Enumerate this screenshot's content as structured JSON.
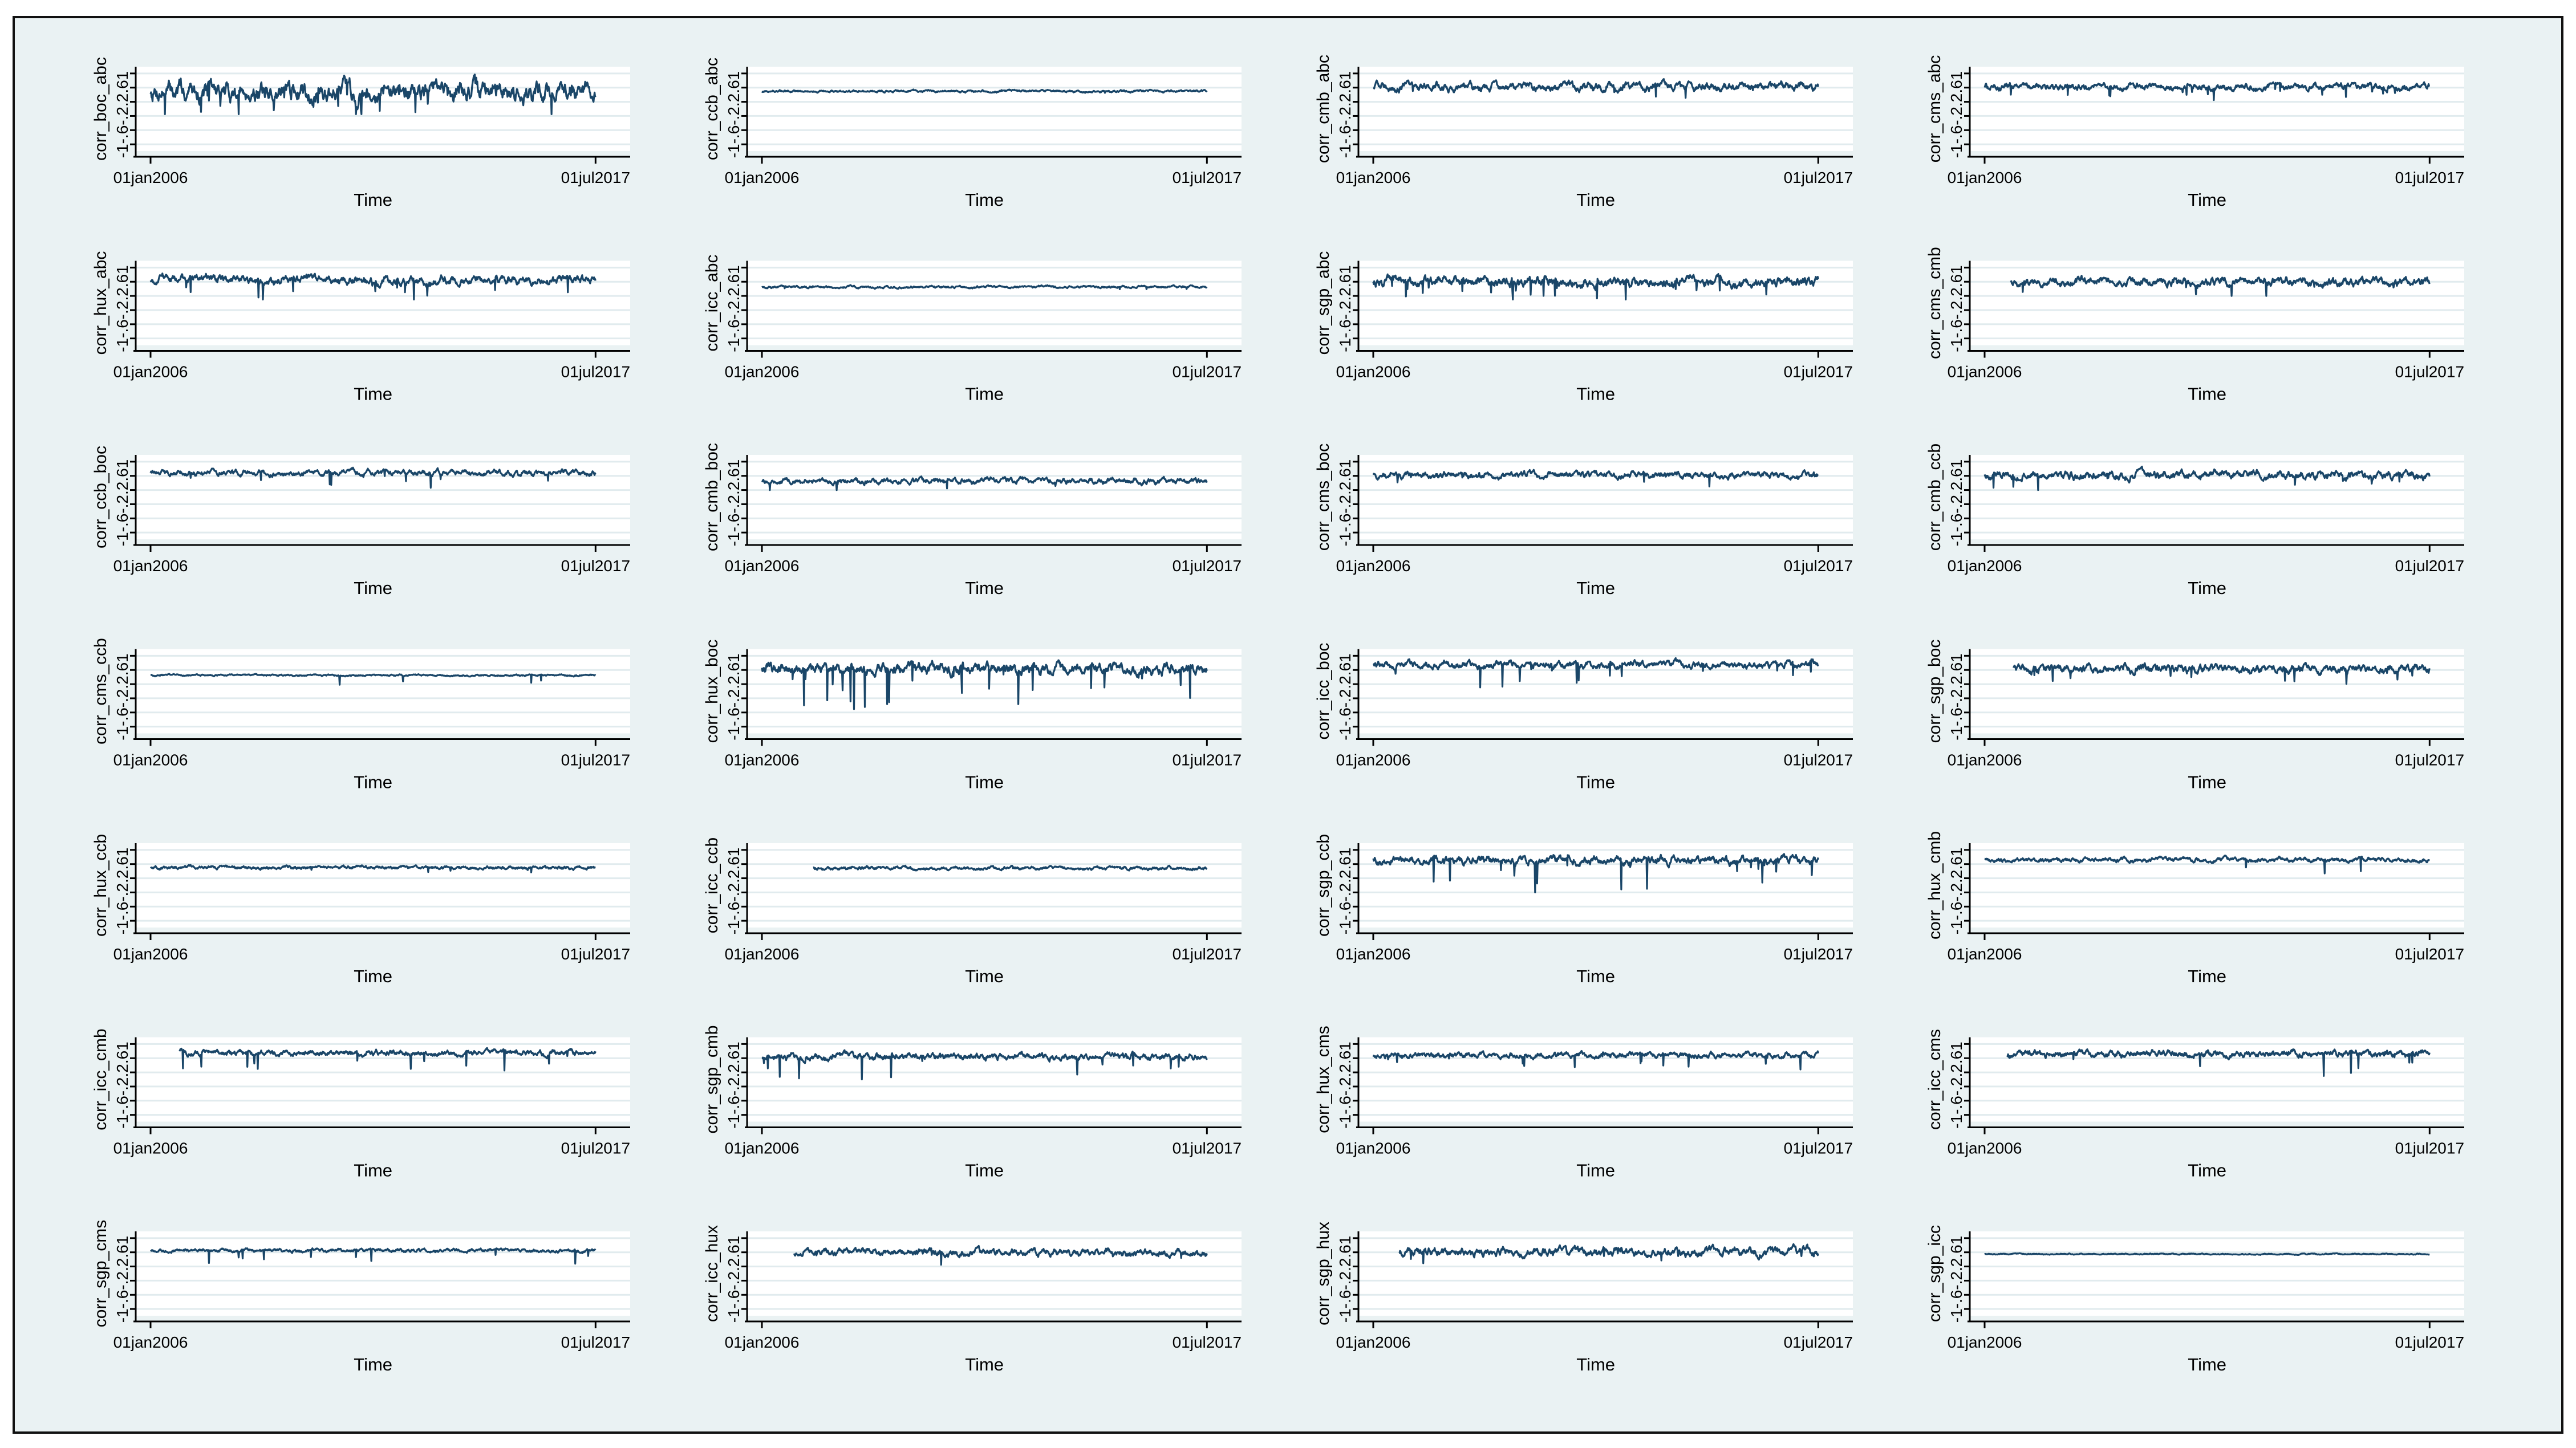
{
  "figure": {
    "background": "#eaf2f3",
    "plot_background": "#ffffff",
    "line_color": "#1a4668",
    "grid_color": "#e1ebee"
  },
  "chart_data": [
    {
      "type": "line",
      "ylabel": "corr_boc_abc",
      "xlabel": "Time",
      "y_ticks": [
        "-1",
        "-.6",
        "-.2",
        ".2",
        ".6",
        "1"
      ],
      "ylim": [
        -1,
        1
      ],
      "x_ticks": [
        "01jan2006",
        "01jul2017"
      ],
      "series": [
        {
          "x_start": "2006-01-01",
          "x_end": "2017-07-01",
          "level": 0.5,
          "volatility": 0.35,
          "spikiness": 0.8,
          "min": -0.15,
          "max": 0.98
        }
      ]
    },
    {
      "type": "line",
      "ylabel": "corr_ccb_abc",
      "xlabel": "Time",
      "y_ticks": [
        "-1",
        "-.6",
        "-.2",
        ".2",
        ".6",
        "1"
      ],
      "ylim": [
        -1,
        1
      ],
      "x_ticks": [
        "01jan2006",
        "01jul2017"
      ],
      "series": [
        {
          "x_start": "2006-01-01",
          "x_end": "2017-07-01",
          "level": 0.5,
          "volatility": 0.04,
          "spikiness": 0.05,
          "min": 0.36,
          "max": 0.62
        }
      ]
    },
    {
      "type": "line",
      "ylabel": "corr_cmb_abc",
      "xlabel": "Time",
      "y_ticks": [
        "-1",
        "-.6",
        "-.2",
        ".2",
        ".6",
        "1"
      ],
      "ylim": [
        -1,
        1
      ],
      "x_ticks": [
        "01jan2006",
        "01jul2017"
      ],
      "series": [
        {
          "x_start": "2006-01-01",
          "x_end": "2017-07-01",
          "level": 0.62,
          "volatility": 0.15,
          "spikiness": 0.35,
          "min": 0.25,
          "max": 0.95
        }
      ]
    },
    {
      "type": "line",
      "ylabel": "corr_cms_abc",
      "xlabel": "Time",
      "y_ticks": [
        "-1",
        "-.6",
        "-.2",
        ".2",
        ".6",
        "1"
      ],
      "ylim": [
        -1,
        1
      ],
      "x_ticks": [
        "01jan2006",
        "01jul2017"
      ],
      "series": [
        {
          "x_start": "2006-01-01",
          "x_end": "2017-07-01",
          "level": 0.62,
          "volatility": 0.12,
          "spikiness": 0.3,
          "min": 0.25,
          "max": 0.95
        }
      ]
    },
    {
      "type": "line",
      "ylabel": "corr_hux_abc",
      "xlabel": "Time",
      "y_ticks": [
        "-1",
        "-.6",
        "-.2",
        ".2",
        ".6",
        "1"
      ],
      "ylim": [
        -1,
        1
      ],
      "x_ticks": [
        "01jan2006",
        "01jul2017"
      ],
      "series": [
        {
          "x_start": "2006-01-01",
          "x_end": "2017-07-01",
          "level": 0.65,
          "volatility": 0.15,
          "spikiness": 0.45,
          "min": 0.1,
          "max": 0.95
        }
      ]
    },
    {
      "type": "line",
      "ylabel": "corr_icc_abc",
      "xlabel": "Time",
      "y_ticks": [
        "-1",
        "-.6",
        "-.2",
        ".2",
        ".6",
        "1"
      ],
      "ylim": [
        -1,
        1
      ],
      "x_ticks": [
        "01jan2006",
        "01jul2017"
      ],
      "series": [
        {
          "x_start": "2006-01-01",
          "x_end": "2017-07-01",
          "level": 0.45,
          "volatility": 0.04,
          "spikiness": 0.1,
          "min": 0.35,
          "max": 0.55
        }
      ]
    },
    {
      "type": "line",
      "ylabel": "corr_sgp_abc",
      "xlabel": "Time",
      "y_ticks": [
        "-1",
        "-.6",
        "-.2",
        ".2",
        ".6",
        "1"
      ],
      "ylim": [
        -1,
        1
      ],
      "x_ticks": [
        "01jan2006",
        "01jul2017"
      ],
      "series": [
        {
          "x_start": "2006-01-01",
          "x_end": "2017-07-01",
          "level": 0.6,
          "volatility": 0.18,
          "spikiness": 0.5,
          "min": 0.1,
          "max": 0.98
        }
      ]
    },
    {
      "type": "line",
      "ylabel": "corr_cms_cmb",
      "xlabel": "Time",
      "y_ticks": [
        "-1",
        "-.6",
        "-.2",
        ".2",
        ".6",
        "1"
      ],
      "ylim": [
        -1,
        1
      ],
      "x_ticks": [
        "01jan2006",
        "01jul2017"
      ],
      "series": [
        {
          "x_start": "2006-09-01",
          "x_end": "2017-07-01",
          "level": 0.6,
          "volatility": 0.15,
          "spikiness": 0.4,
          "min": 0.2,
          "max": 0.95
        }
      ]
    },
    {
      "type": "line",
      "ylabel": "corr_ccb_boc",
      "xlabel": "Time",
      "y_ticks": [
        "-1",
        "-.6",
        "-.2",
        ".2",
        ".6",
        "1"
      ],
      "ylim": [
        -1,
        1
      ],
      "x_ticks": [
        "01jan2006",
        "01jul2017"
      ],
      "series": [
        {
          "x_start": "2006-01-01",
          "x_end": "2017-07-01",
          "level": 0.68,
          "volatility": 0.1,
          "spikiness": 0.35,
          "min": 0.25,
          "max": 0.95
        }
      ]
    },
    {
      "type": "line",
      "ylabel": "corr_cmb_boc",
      "xlabel": "Time",
      "y_ticks": [
        "-1",
        "-.6",
        "-.2",
        ".2",
        ".6",
        "1"
      ],
      "ylim": [
        -1,
        1
      ],
      "x_ticks": [
        "01jan2006",
        "01jul2017"
      ],
      "series": [
        {
          "x_start": "2006-01-01",
          "x_end": "2017-07-01",
          "level": 0.45,
          "volatility": 0.1,
          "spikiness": 0.25,
          "min": 0.2,
          "max": 0.8
        }
      ]
    },
    {
      "type": "line",
      "ylabel": "corr_cms_boc",
      "xlabel": "Time",
      "y_ticks": [
        "-1",
        "-.6",
        "-.2",
        ".2",
        ".6",
        "1"
      ],
      "ylim": [
        -1,
        1
      ],
      "x_ticks": [
        "01jan2006",
        "01jul2017"
      ],
      "series": [
        {
          "x_start": "2006-01-01",
          "x_end": "2017-07-01",
          "level": 0.62,
          "volatility": 0.12,
          "spikiness": 0.3,
          "min": 0.25,
          "max": 0.95
        }
      ]
    },
    {
      "type": "line",
      "ylabel": "corr_cmb_ccb",
      "xlabel": "Time",
      "y_ticks": [
        "-1",
        "-.6",
        "-.2",
        ".2",
        ".6",
        "1"
      ],
      "ylim": [
        -1,
        1
      ],
      "x_ticks": [
        "01jan2006",
        "01jul2017"
      ],
      "series": [
        {
          "x_start": "2006-01-01",
          "x_end": "2017-07-01",
          "level": 0.62,
          "volatility": 0.14,
          "spikiness": 0.35,
          "min": 0.2,
          "max": 0.95
        }
      ]
    },
    {
      "type": "line",
      "ylabel": "corr_cms_ccb",
      "xlabel": "Time",
      "y_ticks": [
        "-1",
        "-.6",
        "-.2",
        ".2",
        ".6",
        "1"
      ],
      "ylim": [
        -1,
        1
      ],
      "x_ticks": [
        "01jan2006",
        "01jul2017"
      ],
      "series": [
        {
          "x_start": "2006-01-01",
          "x_end": "2017-07-01",
          "level": 0.45,
          "volatility": 0.03,
          "spikiness": 0.05,
          "min": 0.15,
          "max": 0.58
        }
      ]
    },
    {
      "type": "line",
      "ylabel": "corr_hux_boc",
      "xlabel": "Time",
      "y_ticks": [
        "-1",
        "-.6",
        "-.2",
        ".2",
        ".6",
        "1"
      ],
      "ylim": [
        -1,
        1
      ],
      "x_ticks": [
        "01jan2006",
        "01jul2017"
      ],
      "series": [
        {
          "x_start": "2006-01-01",
          "x_end": "2017-07-01",
          "level": 0.62,
          "volatility": 0.2,
          "spikiness": 0.7,
          "min": -0.55,
          "max": 0.98
        }
      ]
    },
    {
      "type": "line",
      "ylabel": "corr_icc_boc",
      "xlabel": "Time",
      "y_ticks": [
        "-1",
        "-.6",
        "-.2",
        ".2",
        ".6",
        "1"
      ],
      "ylim": [
        -1,
        1
      ],
      "x_ticks": [
        "01jan2006",
        "01jul2017"
      ],
      "series": [
        {
          "x_start": "2006-01-01",
          "x_end": "2017-07-01",
          "level": 0.75,
          "volatility": 0.12,
          "spikiness": 0.55,
          "min": 0.1,
          "max": 0.98
        }
      ]
    },
    {
      "type": "line",
      "ylabel": "corr_sgp_boc",
      "xlabel": "Time",
      "y_ticks": [
        "-1",
        "-.6",
        "-.2",
        ".2",
        ".6",
        "1"
      ],
      "ylim": [
        -1,
        1
      ],
      "x_ticks": [
        "01jan2006",
        "01jul2017"
      ],
      "series": [
        {
          "x_start": "2006-10-01",
          "x_end": "2017-07-01",
          "level": 0.62,
          "volatility": 0.15,
          "spikiness": 0.5,
          "min": 0.2,
          "max": 0.95
        }
      ]
    },
    {
      "type": "line",
      "ylabel": "corr_hux_ccb",
      "xlabel": "Time",
      "y_ticks": [
        "-1",
        "-.6",
        "-.2",
        ".2",
        ".6",
        "1"
      ],
      "ylim": [
        -1,
        1
      ],
      "x_ticks": [
        "01jan2006",
        "01jul2017"
      ],
      "series": [
        {
          "x_start": "2006-01-01",
          "x_end": "2017-07-01",
          "level": 0.5,
          "volatility": 0.06,
          "spikiness": 0.2,
          "min": 0.3,
          "max": 0.75
        }
      ]
    },
    {
      "type": "line",
      "ylabel": "corr_icc_ccb",
      "xlabel": "Time",
      "y_ticks": [
        "-1",
        "-.6",
        "-.2",
        ".2",
        ".6",
        "1"
      ],
      "ylim": [
        -1,
        1
      ],
      "x_ticks": [
        "01jan2006",
        "01jul2017"
      ],
      "series": [
        {
          "x_start": "2007-05-01",
          "x_end": "2017-07-01",
          "level": 0.48,
          "volatility": 0.06,
          "spikiness": 0.2,
          "min": 0.3,
          "max": 0.7
        }
      ]
    },
    {
      "type": "line",
      "ylabel": "corr_sgp_ccb",
      "xlabel": "Time",
      "y_ticks": [
        "-1",
        "-.6",
        "-.2",
        ".2",
        ".6",
        "1"
      ],
      "ylim": [
        -1,
        1
      ],
      "x_ticks": [
        "01jan2006",
        "01jul2017"
      ],
      "series": [
        {
          "x_start": "2006-01-01",
          "x_end": "2017-07-01",
          "level": 0.7,
          "volatility": 0.15,
          "spikiness": 0.6,
          "min": -0.2,
          "max": 0.98
        }
      ]
    },
    {
      "type": "line",
      "ylabel": "corr_hux_cmb",
      "xlabel": "Time",
      "y_ticks": [
        "-1",
        "-.6",
        "-.2",
        ".2",
        ".6",
        "1"
      ],
      "ylim": [
        -1,
        1
      ],
      "x_ticks": [
        "01jan2006",
        "01jul2017"
      ],
      "series": [
        {
          "x_start": "2006-01-01",
          "x_end": "2017-07-01",
          "level": 0.72,
          "volatility": 0.08,
          "spikiness": 0.3,
          "min": 0.2,
          "max": 0.95
        }
      ]
    },
    {
      "type": "line",
      "ylabel": "corr_icc_cmb",
      "xlabel": "Time",
      "y_ticks": [
        "-1",
        "-.6",
        "-.2",
        ".2",
        ".6",
        "1"
      ],
      "ylim": [
        -1,
        1
      ],
      "x_ticks": [
        "01jan2006",
        "01jul2017"
      ],
      "series": [
        {
          "x_start": "2006-10-01",
          "x_end": "2017-07-01",
          "level": 0.75,
          "volatility": 0.1,
          "spikiness": 0.45,
          "min": 0.2,
          "max": 0.98
        }
      ]
    },
    {
      "type": "line",
      "ylabel": "corr_sgp_cmb",
      "xlabel": "Time",
      "y_ticks": [
        "-1",
        "-.6",
        "-.2",
        ".2",
        ".6",
        "1"
      ],
      "ylim": [
        -1,
        1
      ],
      "x_ticks": [
        "01jan2006",
        "01jul2017"
      ],
      "series": [
        {
          "x_start": "2006-01-01",
          "x_end": "2017-07-01",
          "level": 0.65,
          "volatility": 0.12,
          "spikiness": 0.45,
          "min": 0.0,
          "max": 0.95
        }
      ]
    },
    {
      "type": "line",
      "ylabel": "corr_hux_cms",
      "xlabel": "Time",
      "y_ticks": [
        "-1",
        "-.6",
        "-.2",
        ".2",
        ".6",
        "1"
      ],
      "ylim": [
        -1,
        1
      ],
      "x_ticks": [
        "01jan2006",
        "01jul2017"
      ],
      "series": [
        {
          "x_start": "2006-01-01",
          "x_end": "2017-07-01",
          "level": 0.68,
          "volatility": 0.1,
          "spikiness": 0.4,
          "min": 0.25,
          "max": 0.95
        }
      ]
    },
    {
      "type": "line",
      "ylabel": "corr_icc_cms",
      "xlabel": "Time",
      "y_ticks": [
        "-1",
        "-.6",
        "-.2",
        ".2",
        ".6",
        "1"
      ],
      "ylim": [
        -1,
        1
      ],
      "x_ticks": [
        "01jan2006",
        "01jul2017"
      ],
      "series": [
        {
          "x_start": "2006-08-01",
          "x_end": "2017-07-01",
          "level": 0.72,
          "volatility": 0.12,
          "spikiness": 0.55,
          "min": 0.1,
          "max": 0.98
        }
      ]
    },
    {
      "type": "line",
      "ylabel": "corr_sgp_cms",
      "xlabel": "Time",
      "y_ticks": [
        "-1",
        "-.6",
        "-.2",
        ".2",
        ".6",
        "1"
      ],
      "ylim": [
        -1,
        1
      ],
      "x_ticks": [
        "01jan2006",
        "01jul2017"
      ],
      "series": [
        {
          "x_start": "2006-01-01",
          "x_end": "2017-07-01",
          "level": 0.65,
          "volatility": 0.06,
          "spikiness": 0.3,
          "min": 0.2,
          "max": 0.9
        }
      ]
    },
    {
      "type": "line",
      "ylabel": "corr_icc_hux",
      "xlabel": "Time",
      "y_ticks": [
        "-1",
        "-.6",
        "-.2",
        ".2",
        ".6",
        "1"
      ],
      "ylim": [
        -1,
        1
      ],
      "x_ticks": [
        "01jan2006",
        "01jul2017"
      ],
      "series": [
        {
          "x_start": "2006-11-01",
          "x_end": "2017-07-01",
          "level": 0.6,
          "volatility": 0.12,
          "spikiness": 0.35,
          "min": 0.25,
          "max": 0.95
        }
      ]
    },
    {
      "type": "line",
      "ylabel": "corr_sgp_hux",
      "xlabel": "Time",
      "y_ticks": [
        "-1",
        "-.6",
        "-.2",
        ".2",
        ".6",
        "1"
      ],
      "ylim": [
        -1,
        1
      ],
      "x_ticks": [
        "01jan2006",
        "01jul2017"
      ],
      "series": [
        {
          "x_start": "2006-09-01",
          "x_end": "2017-07-01",
          "level": 0.62,
          "volatility": 0.15,
          "spikiness": 0.35,
          "min": 0.2,
          "max": 0.95
        }
      ]
    },
    {
      "type": "line",
      "ylabel": "corr_sgp_icc",
      "xlabel": "Time",
      "y_ticks": [
        "-1",
        "-.6",
        "-.2",
        ".2",
        ".6",
        "1"
      ],
      "ylim": [
        -1,
        1
      ],
      "x_ticks": [
        "01jan2006",
        "01jul2017"
      ],
      "series": [
        {
          "x_start": "2006-01-01",
          "x_end": "2017-07-01",
          "level": 0.55,
          "volatility": 0.02,
          "spikiness": 0.05,
          "min": 0.3,
          "max": 0.65
        }
      ]
    }
  ]
}
